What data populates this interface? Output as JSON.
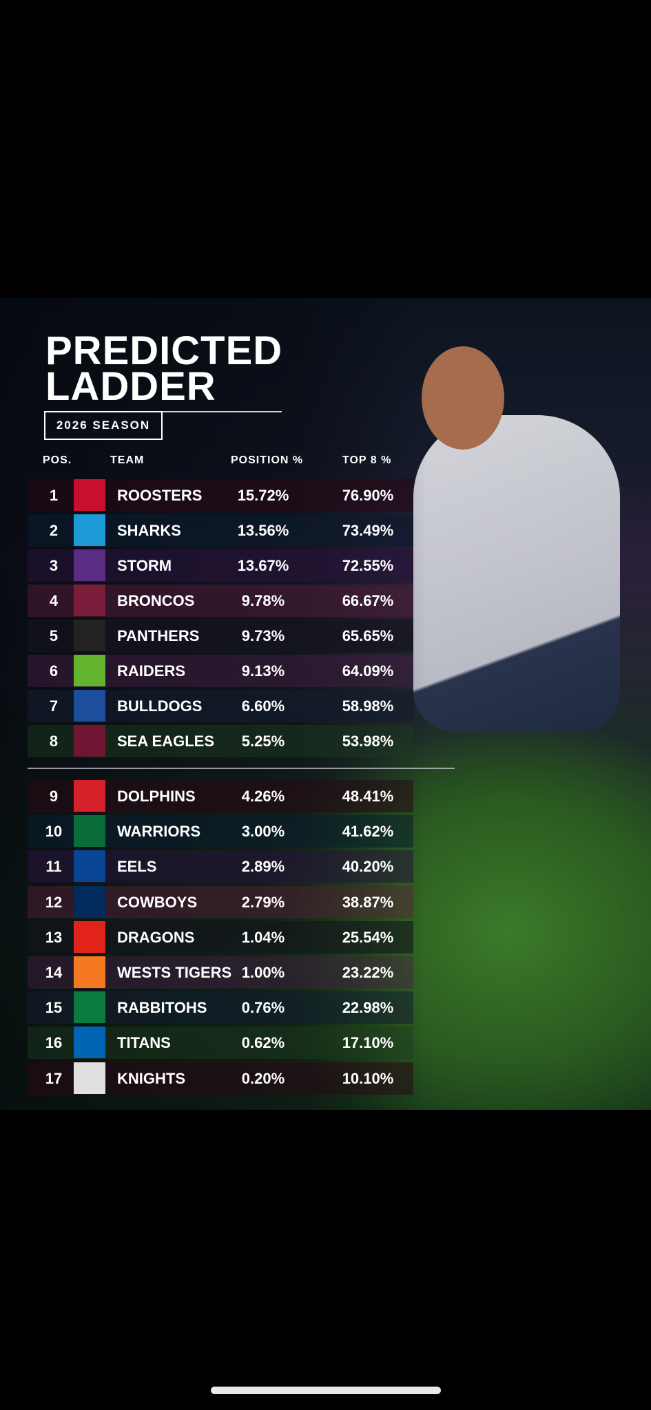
{
  "header": {
    "title_line1": "PREDICTED",
    "title_line2": "LADDER",
    "season": "2026 SEASON"
  },
  "table": {
    "columns": [
      "POS.",
      "TEAM",
      "POSITION %",
      "TOP 8 %"
    ],
    "rows": [
      [
        1,
        "ROOSTERS",
        "15.72%",
        "76.90%"
      ],
      [
        2,
        "SHARKS",
        "13.56%",
        "73.49%"
      ],
      [
        3,
        "STORM",
        "13.67%",
        "72.55%"
      ],
      [
        4,
        "BRONCOS",
        "9.78%",
        "66.67%"
      ],
      [
        5,
        "PANTHERS",
        "9.73%",
        "65.65%"
      ],
      [
        6,
        "RAIDERS",
        "9.13%",
        "64.09%"
      ],
      [
        7,
        "BULLDOGS",
        "6.60%",
        "58.98%"
      ],
      [
        8,
        "SEA EAGLES",
        "5.25%",
        "53.98%"
      ],
      [
        9,
        "DOLPHINS",
        "4.26%",
        "48.41%"
      ],
      [
        10,
        "WARRIORS",
        "3.00%",
        "41.62%"
      ],
      [
        11,
        "EELS",
        "2.89%",
        "40.20%"
      ],
      [
        12,
        "COWBOYS",
        "2.79%",
        "38.87%"
      ],
      [
        13,
        "DRAGONS",
        "1.04%",
        "25.54%"
      ],
      [
        14,
        "WESTS TIGERS",
        "1.00%",
        "23.22%"
      ],
      [
        15,
        "RABBITOHS",
        "0.76%",
        "22.98%"
      ],
      [
        16,
        "TITANS",
        "0.62%",
        "17.10%"
      ],
      [
        17,
        "KNIGHTS",
        "0.20%",
        "10.10%"
      ]
    ]
  }
}
